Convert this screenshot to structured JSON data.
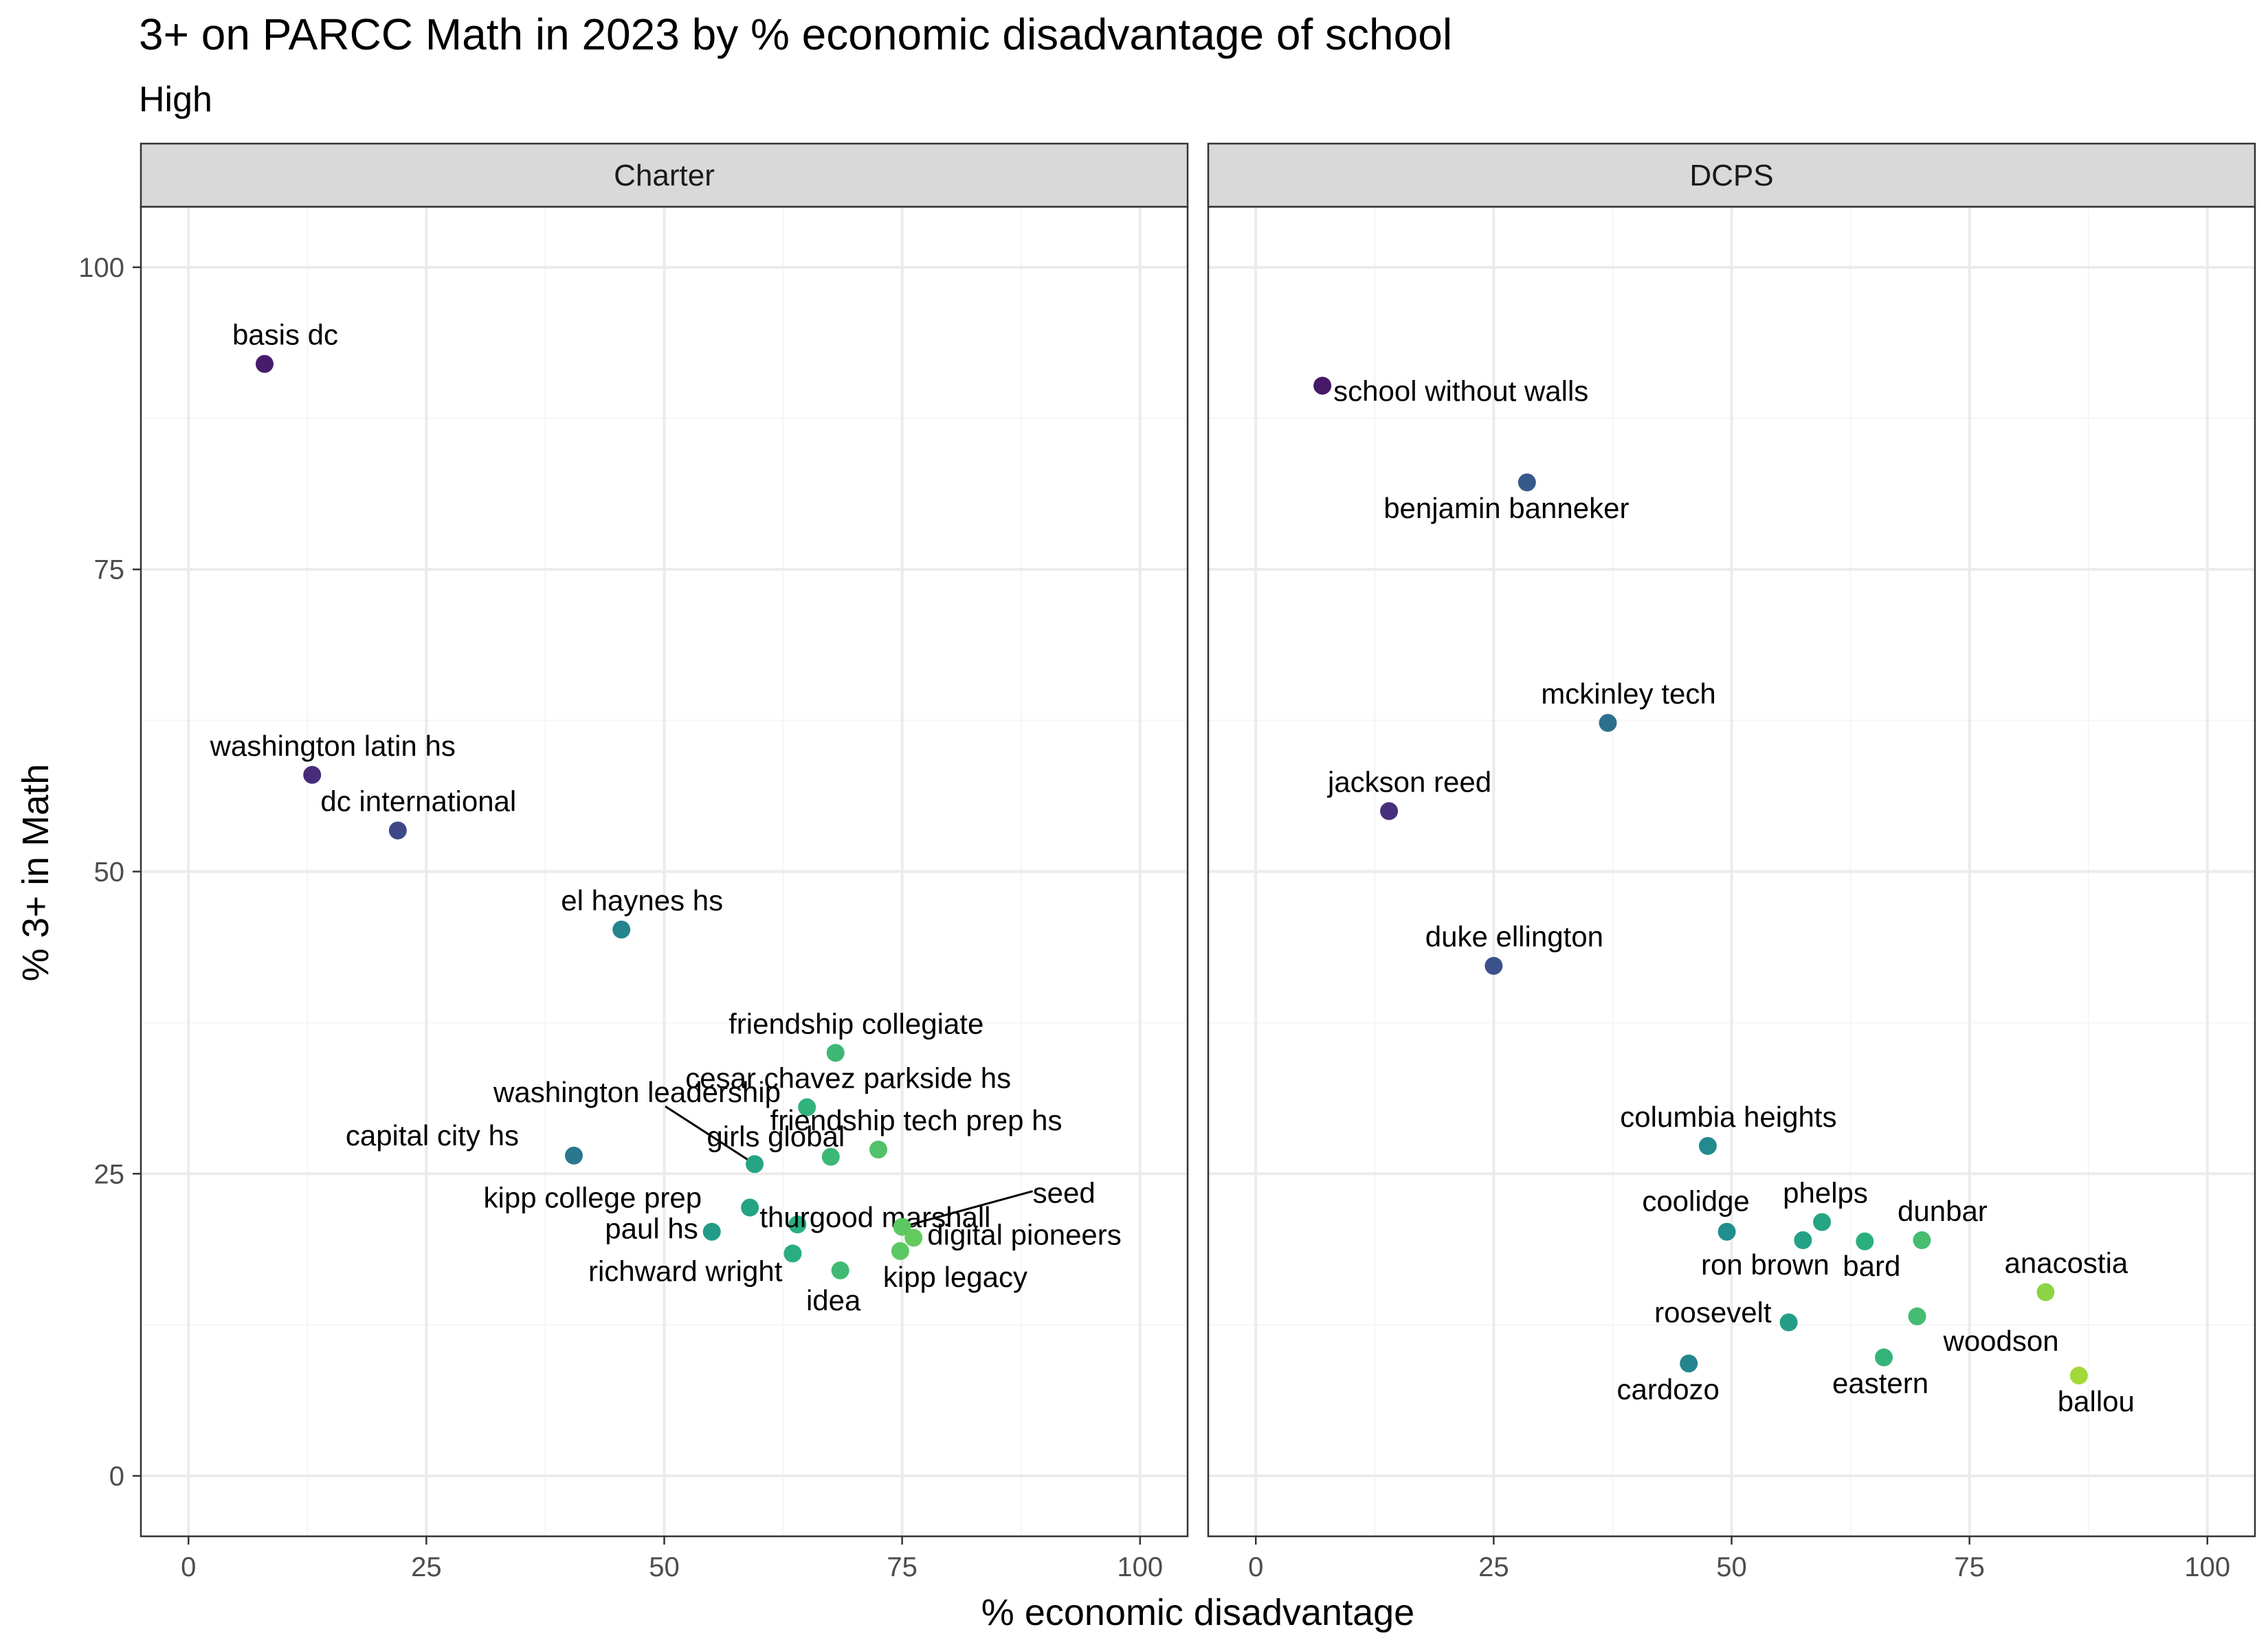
{
  "chart_data": {
    "type": "scatter",
    "title": "3+ on PARCC Math in 2023 by % economic disadvantage of school",
    "subtitle": "High",
    "xlabel": "% economic disadvantage",
    "ylabel": "% 3+ in Math",
    "xlim": [
      -5,
      105
    ],
    "ylim": [
      -5,
      105
    ],
    "x_ticks": [
      0,
      25,
      50,
      75,
      100
    ],
    "y_ticks": [
      0,
      25,
      50,
      75,
      100
    ],
    "grid": true,
    "legend": "none",
    "color_scale": "viridis by x",
    "palette": {
      "panel_strip": "#d9d9d9",
      "grid_major": "#ebebeb",
      "grid_minor": "#f5f5f5",
      "frame": "#333333"
    },
    "panels": [
      {
        "name": "Charter",
        "points": [
          {
            "label": "basis dc",
            "x": 8,
            "y": 92
          },
          {
            "label": "washington latin hs",
            "x": 13,
            "y": 58
          },
          {
            "label": "dc international",
            "x": 22,
            "y": 53.4
          },
          {
            "label": "el haynes hs",
            "x": 45.5,
            "y": 45.2
          },
          {
            "label": "friendship collegiate",
            "x": 68,
            "y": 35
          },
          {
            "label": "cesar chavez parkside hs",
            "x": 65,
            "y": 30.5
          },
          {
            "label": "friendship tech prep hs",
            "x": 72.5,
            "y": 27
          },
          {
            "label": "girls global",
            "x": 67.5,
            "y": 26.4
          },
          {
            "label": "washington leadership",
            "x": 59.5,
            "y": 25.8
          },
          {
            "label": "capital city hs",
            "x": 40.5,
            "y": 26.5
          },
          {
            "label": "kipp college prep",
            "x": 59,
            "y": 22.2
          },
          {
            "label": "thurgood marshall",
            "x": 64,
            "y": 20.8
          },
          {
            "label": "seed",
            "x": 75,
            "y": 20.6
          },
          {
            "label": "digital pioneers",
            "x": 76.2,
            "y": 19.7
          },
          {
            "label": "paul hs",
            "x": 55,
            "y": 20.2
          },
          {
            "label": "kipp legacy",
            "x": 74.8,
            "y": 18.6
          },
          {
            "label": "richward wright",
            "x": 63.5,
            "y": 18.4
          },
          {
            "label": "idea",
            "x": 68.5,
            "y": 17
          }
        ]
      },
      {
        "name": "DCPS",
        "points": [
          {
            "label": "school without walls",
            "x": 7,
            "y": 90.2
          },
          {
            "label": "benjamin banneker",
            "x": 28.5,
            "y": 82.2
          },
          {
            "label": "mckinley tech",
            "x": 37,
            "y": 62.3
          },
          {
            "label": "jackson reed",
            "x": 14,
            "y": 55
          },
          {
            "label": "duke ellington",
            "x": 25,
            "y": 42.2
          },
          {
            "label": "columbia heights",
            "x": 47.5,
            "y": 27.3
          },
          {
            "label": "coolidge",
            "x": 49.5,
            "y": 20.2
          },
          {
            "label": "phelps",
            "x": 59.5,
            "y": 21
          },
          {
            "label": "ron brown",
            "x": 57.5,
            "y": 19.5
          },
          {
            "label": "bard",
            "x": 64,
            "y": 19.4
          },
          {
            "label": "dunbar",
            "x": 70,
            "y": 19.5
          },
          {
            "label": "anacostia",
            "x": 83,
            "y": 15.2
          },
          {
            "label": "roosevelt",
            "x": 56,
            "y": 12.7
          },
          {
            "label": "woodson",
            "x": 69.5,
            "y": 13.2
          },
          {
            "label": "eastern",
            "x": 66,
            "y": 9.8
          },
          {
            "label": "cardozo",
            "x": 45.5,
            "y": 9.3
          },
          {
            "label": "ballou",
            "x": 86.5,
            "y": 8.3
          }
        ]
      }
    ]
  }
}
